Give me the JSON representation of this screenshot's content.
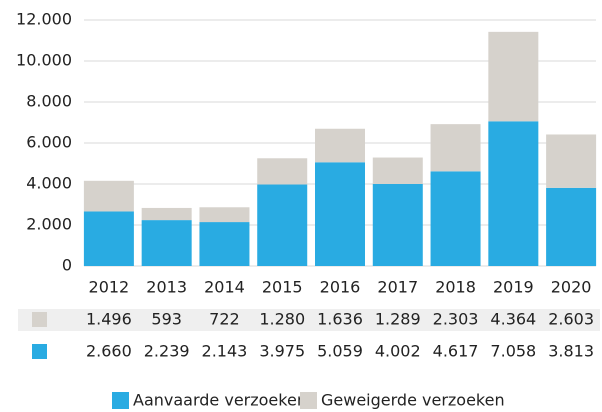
{
  "chart_data": {
    "type": "stacked_bar",
    "categories": [
      "2012",
      "2013",
      "2014",
      "2015",
      "2016",
      "2017",
      "2018",
      "2019",
      "2020"
    ],
    "series": [
      {
        "name": "Aanvaarde verzoeken",
        "color": "#29abe2",
        "values": [
          2660,
          2239,
          2143,
          3975,
          5059,
          4002,
          4617,
          7058,
          3813
        ],
        "value_labels": [
          "2.660",
          "2.239",
          "2.143",
          "3.975",
          "5.059",
          "4.002",
          "4.617",
          "7.058",
          "3.813"
        ]
      },
      {
        "name": "Geweigerde verzoeken",
        "color": "#d6d2cc",
        "values": [
          1496,
          593,
          722,
          1280,
          1636,
          1289,
          2303,
          4364,
          2603
        ],
        "value_labels": [
          "1.496",
          "593",
          "722",
          "1.280",
          "1.636",
          "1.289",
          "2.303",
          "4.364",
          "2.603"
        ]
      }
    ],
    "ylim": [
      0,
      12000
    ],
    "yticks": [
      0,
      {
        "value": 2000,
        "label": "2.000"
      },
      {
        "value": 4000,
        "label": "4.000"
      },
      {
        "value": 6000,
        "label": "6.000"
      },
      {
        "value": 8000,
        "label": "8.000"
      },
      {
        "value": 10000,
        "label": "10.000"
      },
      {
        "value": 12000,
        "label": "12.000"
      }
    ],
    "grid": true
  }
}
